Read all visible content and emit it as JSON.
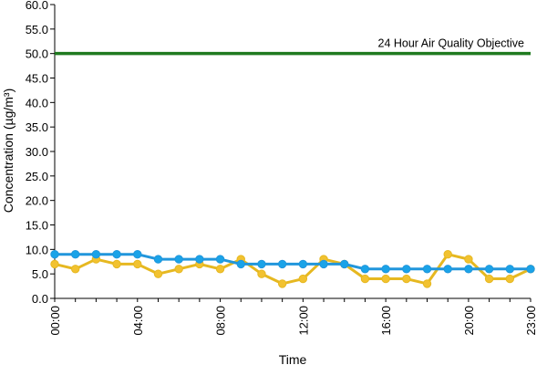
{
  "chart_data": {
    "type": "line",
    "xlabel": "Time",
    "ylabel": "Concentration (µg/m³)",
    "ylim": [
      0,
      60
    ],
    "y_ticks": [
      "0.0",
      "5.0",
      "10.0",
      "15.0",
      "20.0",
      "25.0",
      "30.0",
      "35.0",
      "40.0",
      "45.0",
      "50.0",
      "55.0",
      "60.0"
    ],
    "x": [
      "00:00",
      "01:00",
      "02:00",
      "03:00",
      "04:00",
      "05:00",
      "06:00",
      "07:00",
      "08:00",
      "09:00",
      "10:00",
      "11:00",
      "12:00",
      "13:00",
      "14:00",
      "15:00",
      "16:00",
      "17:00",
      "18:00",
      "19:00",
      "20:00",
      "21:00",
      "22:00",
      "23:00"
    ],
    "x_tick_labels": [
      "00:00",
      "04:00",
      "08:00",
      "12:00",
      "16:00",
      "20:00",
      "23:00"
    ],
    "series": [
      {
        "values": [
          7,
          6,
          8,
          7,
          7,
          5,
          6,
          7,
          6,
          8,
          5,
          3,
          4,
          8,
          7,
          4,
          4,
          4,
          3,
          9,
          8,
          4,
          4,
          6
        ],
        "color": "#f2c230",
        "stroke": "#e6b820"
      },
      {
        "values": [
          9,
          9,
          9,
          9,
          9,
          8,
          8,
          8,
          8,
          7,
          7,
          7,
          7,
          7,
          7,
          6,
          6,
          6,
          6,
          6,
          6,
          6,
          6,
          6
        ],
        "color": "#1aa3e8",
        "stroke": "#2196dc"
      }
    ],
    "reference_line": {
      "value": 50,
      "label": "24 Hour Air Quality Objective",
      "color": "#1f7a1f"
    },
    "grid": false,
    "legend": "none"
  }
}
